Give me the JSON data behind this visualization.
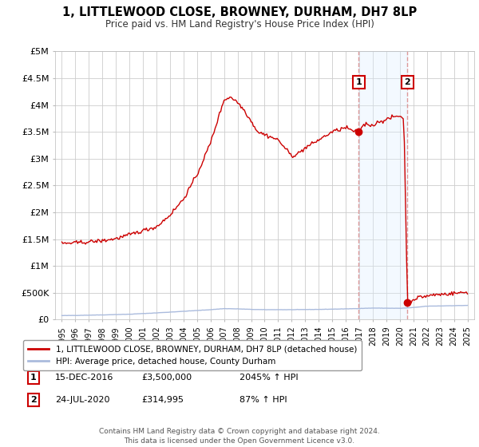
{
  "title": "1, LITTLEWOOD CLOSE, BROWNEY, DURHAM, DH7 8LP",
  "subtitle": "Price paid vs. HM Land Registry's House Price Index (HPI)",
  "ylim": [
    0,
    5000000
  ],
  "yticks": [
    0,
    500000,
    1000000,
    1500000,
    2000000,
    2500000,
    3000000,
    3500000,
    4000000,
    4500000,
    5000000
  ],
  "ytick_labels": [
    "£0",
    "£500K",
    "£1M",
    "£1.5M",
    "£2M",
    "£2.5M",
    "£3M",
    "£3.5M",
    "£4M",
    "£4.5M",
    "£5M"
  ],
  "xlim_min": 1994.5,
  "xlim_max": 2025.5,
  "background_color": "#ffffff",
  "grid_color": "#cccccc",
  "sale1_date": 2016.96,
  "sale1_price": 3500000,
  "sale1_label": "15-DEC-2016",
  "sale1_value_label": "£3,500,000",
  "sale1_hpi_label": "2045% ↑ HPI",
  "sale2_date": 2020.56,
  "sale2_price": 314995,
  "sale2_label": "24-JUL-2020",
  "sale2_value_label": "£314,995",
  "sale2_hpi_label": "87% ↑ HPI",
  "legend_line1": "1, LITTLEWOOD CLOSE, BROWNEY, DURHAM, DH7 8LP (detached house)",
  "legend_line2": "HPI: Average price, detached house, County Durham",
  "footer": "Contains HM Land Registry data © Crown copyright and database right 2024.\nThis data is licensed under the Open Government Licence v3.0.",
  "red_line_color": "#cc0000",
  "blue_line_color": "#aabbdd",
  "marker_color": "#cc0000",
  "dashed_line_color": "#dd9999",
  "span_color": "#ddeeff"
}
